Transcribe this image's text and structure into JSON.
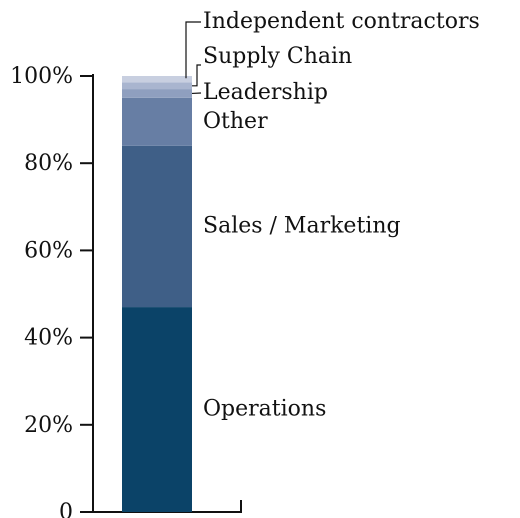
{
  "chart_data": {
    "type": "stacked-bar",
    "categories": [
      "Operations",
      "Sales / Marketing",
      "Other",
      "Leadership",
      "Supply Chain",
      "Independent contractors"
    ],
    "values": [
      47,
      37,
      11,
      2,
      1.5,
      1.5
    ],
    "colors": [
      "#0b4368",
      "#3f5f87",
      "#677ea4",
      "#8f9fbf",
      "#a9b5cf",
      "#c8cfe0"
    ],
    "ylim": [
      0,
      100
    ],
    "yticks": [
      0,
      {
        "value": 20,
        "label": "20%"
      },
      {
        "value": 40,
        "label": "40%"
      },
      {
        "value": 60,
        "label": "60%"
      },
      {
        "value": 80,
        "label": "80%"
      },
      {
        "value": 100,
        "label": "100%"
      }
    ]
  }
}
